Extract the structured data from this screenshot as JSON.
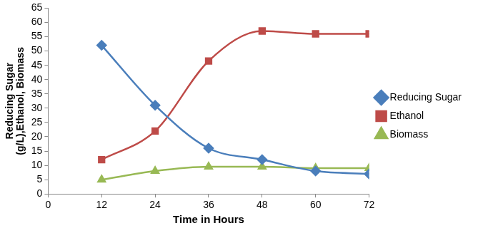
{
  "chart_data": {
    "type": "line",
    "x_label": "Time in Hours",
    "y_label": [
      "Reducing Sugar",
      "(g/L),Ethanol, Biomass"
    ],
    "x": [
      12,
      24,
      36,
      48,
      60,
      72
    ],
    "series": [
      {
        "name": "Reducing Sugar",
        "color": "#4a7ebb",
        "marker": "diamond",
        "line_style": "solid",
        "values": [
          52,
          31,
          16,
          12,
          8,
          7
        ]
      },
      {
        "name": "Ethanol",
        "color": "#be4b48",
        "marker": "square",
        "line_style": "solid",
        "values": [
          12,
          22,
          46.5,
          57,
          56,
          56
        ]
      },
      {
        "name": "Biomass",
        "color": "#98b954",
        "marker": "triangle",
        "line_style": "solid",
        "values": [
          5,
          8,
          9.5,
          9.5,
          9,
          9
        ]
      }
    ],
    "xlim": [
      0,
      72
    ],
    "xticks": [
      0,
      12,
      24,
      36,
      48,
      60,
      72
    ],
    "ylim": [
      0,
      65
    ],
    "yticks": [
      0,
      5,
      10,
      15,
      20,
      25,
      30,
      35,
      40,
      45,
      50,
      55,
      60,
      65
    ],
    "grid": false,
    "legend": "right"
  }
}
